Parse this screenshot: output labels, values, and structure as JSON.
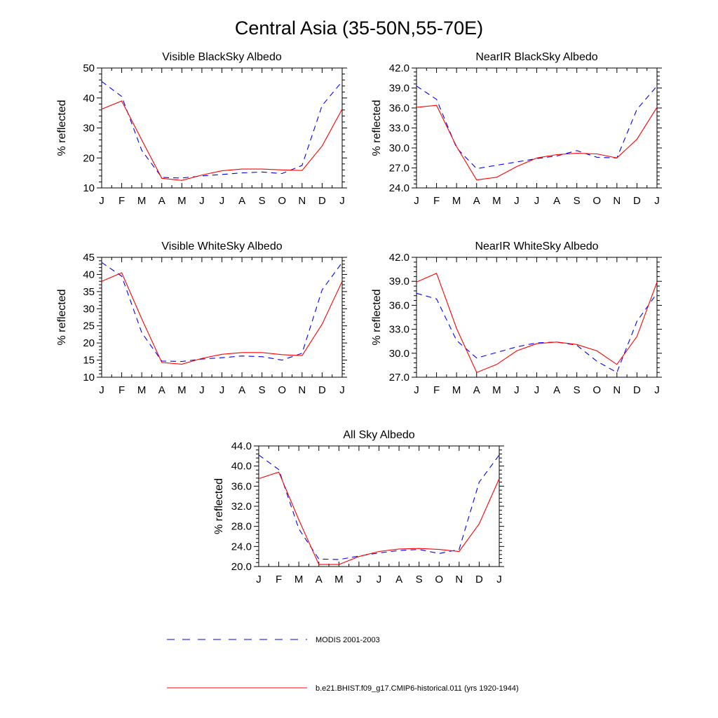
{
  "figure": {
    "title": "Central Asia (35-50N,55-70E)"
  },
  "legend": {
    "items": [
      {
        "label": "MODIS 2001-2003",
        "color": "#0000ff",
        "dashed": true
      },
      {
        "label": "b.e21.BHIST.f09_g17.CMIP6-historical.011 (yrs 1920-1944)",
        "color": "#ff0000",
        "dashed": false
      }
    ]
  },
  "chart_data": [
    {
      "type": "line",
      "title": "Visible BlackSky Albedo",
      "ylabel": "% reflected",
      "xlabel": "",
      "categories": [
        "J",
        "F",
        "M",
        "A",
        "M",
        "J",
        "J",
        "A",
        "S",
        "O",
        "N",
        "D",
        "J"
      ],
      "ylim": [
        10,
        50
      ],
      "yticks": [
        "10",
        "20",
        "30",
        "40",
        "50"
      ],
      "grid": false,
      "series": [
        {
          "name": "MODIS 2001-2003",
          "color": "#0000ff",
          "dashed": true,
          "values": [
            45.5,
            40.5,
            22.5,
            13.5,
            13.3,
            14.0,
            14.5,
            15.0,
            15.3,
            14.8,
            17.5,
            37.5,
            45.5
          ]
        },
        {
          "name": "b.e21.BHIST.f09_g17.CMIP6-historical.011 (yrs 1920-1944)",
          "color": "#ff0000",
          "dashed": false,
          "values": [
            36.3,
            39.0,
            26.0,
            13.2,
            12.5,
            14.3,
            15.7,
            16.3,
            16.3,
            16.0,
            15.8,
            24.0,
            36.3
          ]
        }
      ]
    },
    {
      "type": "line",
      "title": "NearIR BlackSky Albedo",
      "ylabel": "% reflected",
      "xlabel": "",
      "categories": [
        "J",
        "F",
        "M",
        "A",
        "M",
        "J",
        "J",
        "A",
        "S",
        "O",
        "N",
        "D",
        "J"
      ],
      "ylim": [
        24,
        42
      ],
      "yticks": [
        "24.0",
        "27.0",
        "30.0",
        "33.0",
        "36.0",
        "39.0",
        "42.0"
      ],
      "grid": false,
      "series": [
        {
          "name": "MODIS 2001-2003",
          "color": "#0000ff",
          "dashed": true,
          "values": [
            39.3,
            37.3,
            30.0,
            26.9,
            27.4,
            27.9,
            28.4,
            28.8,
            29.6,
            28.6,
            28.5,
            35.8,
            39.3
          ]
        },
        {
          "name": "b.e21.BHIST.f09_g17.CMIP6-historical.011 (yrs 1920-1944)",
          "color": "#ff0000",
          "dashed": false,
          "values": [
            36.1,
            36.4,
            30.2,
            25.2,
            25.6,
            27.2,
            28.5,
            29.0,
            29.2,
            29.1,
            28.5,
            31.3,
            36.1
          ]
        }
      ]
    },
    {
      "type": "line",
      "title": "Visible WhiteSky Albedo",
      "ylabel": "% reflected",
      "xlabel": "",
      "categories": [
        "J",
        "F",
        "M",
        "A",
        "M",
        "J",
        "J",
        "A",
        "S",
        "O",
        "N",
        "D",
        "J"
      ],
      "ylim": [
        10,
        45
      ],
      "yticks": [
        "10",
        "15",
        "20",
        "25",
        "30",
        "35",
        "40",
        "45"
      ],
      "grid": false,
      "series": [
        {
          "name": "MODIS 2001-2003",
          "color": "#0000ff",
          "dashed": true,
          "values": [
            43.5,
            39.5,
            23.0,
            14.7,
            14.6,
            15.3,
            15.7,
            16.2,
            16.0,
            15.0,
            17.0,
            35.5,
            43.5
          ]
        },
        {
          "name": "b.e21.BHIST.f09_g17.CMIP6-historical.011 (yrs 1920-1944)",
          "color": "#ff0000",
          "dashed": false,
          "values": [
            38.0,
            40.5,
            27.0,
            14.3,
            13.8,
            15.5,
            16.7,
            17.2,
            17.2,
            16.6,
            16.3,
            25.5,
            38.0
          ]
        }
      ]
    },
    {
      "type": "line",
      "title": "NearIR WhiteSky Albedo",
      "ylabel": "% reflected",
      "xlabel": "",
      "categories": [
        "J",
        "F",
        "M",
        "A",
        "M",
        "J",
        "J",
        "A",
        "S",
        "O",
        "N",
        "D",
        "J"
      ],
      "ylim": [
        27,
        42
      ],
      "yticks": [
        "27.0",
        "30.0",
        "33.0",
        "36.0",
        "39.0",
        "42.0"
      ],
      "grid": false,
      "series": [
        {
          "name": "MODIS 2001-2003",
          "color": "#0000ff",
          "dashed": true,
          "values": [
            37.5,
            36.8,
            31.6,
            29.4,
            30.1,
            30.8,
            31.3,
            31.4,
            31.0,
            29.0,
            27.6,
            34.0,
            37.5
          ]
        },
        {
          "name": "b.e21.BHIST.f09_g17.CMIP6-historical.011 (yrs 1920-1944)",
          "color": "#ff0000",
          "dashed": false,
          "values": [
            38.9,
            40.0,
            33.1,
            27.6,
            28.6,
            30.3,
            31.2,
            31.4,
            31.1,
            30.3,
            28.6,
            32.1,
            38.9
          ]
        }
      ]
    },
    {
      "type": "line",
      "title": "All Sky Albedo",
      "ylabel": "% reflected",
      "xlabel": "",
      "categories": [
        "J",
        "F",
        "M",
        "A",
        "M",
        "J",
        "J",
        "A",
        "S",
        "O",
        "N",
        "D",
        "J"
      ],
      "ylim": [
        20,
        44
      ],
      "yticks": [
        "20.0",
        "24.0",
        "28.0",
        "32.0",
        "36.0",
        "40.0",
        "44.0"
      ],
      "grid": false,
      "series": [
        {
          "name": "MODIS 2001-2003",
          "color": "#0000ff",
          "dashed": true,
          "values": [
            42.2,
            39.3,
            27.5,
            21.5,
            21.4,
            22.1,
            22.7,
            23.2,
            23.4,
            22.6,
            23.4,
            36.8,
            42.2
          ]
        },
        {
          "name": "b.e21.BHIST.f09_g17.CMIP6-historical.011 (yrs 1920-1944)",
          "color": "#ff0000",
          "dashed": false,
          "values": [
            37.5,
            38.8,
            29.3,
            20.4,
            20.4,
            22.0,
            23.0,
            23.5,
            23.6,
            23.4,
            23.0,
            28.5,
            37.5
          ]
        }
      ]
    }
  ]
}
